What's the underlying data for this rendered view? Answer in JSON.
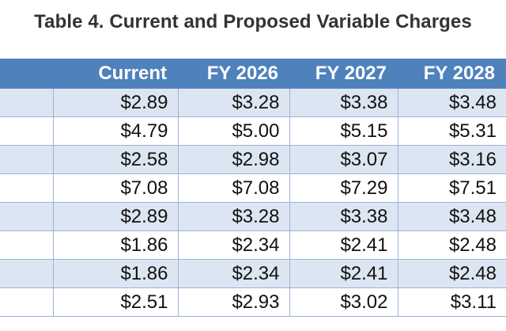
{
  "title": "Table 4. Current and Proposed Variable Charges",
  "table": {
    "headers": [
      "",
      "Current",
      "FY 2026",
      "FY 2027",
      "FY 2028"
    ],
    "rows": [
      [
        "",
        "$2.89",
        "$3.28",
        "$3.38",
        "$3.48"
      ],
      [
        "",
        "$4.79",
        "$5.00",
        "$5.15",
        "$5.31"
      ],
      [
        "",
        "$2.58",
        "$2.98",
        "$3.07",
        "$3.16"
      ],
      [
        "",
        "$7.08",
        "$7.08",
        "$7.29",
        "$7.51"
      ],
      [
        "",
        "$2.89",
        "$3.28",
        "$3.38",
        "$3.48"
      ],
      [
        "",
        "$1.86",
        "$2.34",
        "$2.41",
        "$2.48"
      ],
      [
        "",
        "$1.86",
        "$2.34",
        "$2.41",
        "$2.48"
      ],
      [
        "",
        "$2.51",
        "$2.93",
        "$3.02",
        "$3.11"
      ]
    ]
  },
  "colors": {
    "header_background": "#4f81bd",
    "header_text": "#ffffff",
    "shaded_row": "#dce6f2",
    "title_text": "#333333"
  }
}
